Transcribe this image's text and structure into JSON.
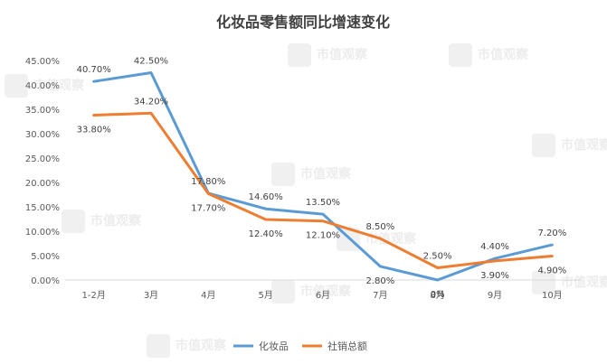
{
  "chart_data": {
    "type": "line",
    "title": "化妆品零售额同比增速变化",
    "categories": [
      "1-2月",
      "3月",
      "4月",
      "5月",
      "6月",
      "7月",
      "8月",
      "9月",
      "10月"
    ],
    "y_ticks": [
      "0.00%",
      "5.00%",
      "10.00%",
      "15.00%",
      "20.00%",
      "25.00%",
      "30.00%",
      "35.00%",
      "40.00%",
      "45.00%"
    ],
    "ylim": [
      0,
      45
    ],
    "grid": false,
    "legend_position": "bottom",
    "series": [
      {
        "name": "化妆品",
        "color": "#5b9bd5",
        "values": [
          40.7,
          42.5,
          17.8,
          14.6,
          13.5,
          2.8,
          0,
          4.4,
          7.2
        ],
        "labels": [
          "40.70%",
          "42.50%",
          "17.80%",
          "14.60%",
          "13.50%",
          "2.80%",
          "0%",
          "4.40%",
          "7.20%"
        ]
      },
      {
        "name": "社销总额",
        "color": "#ed7d31",
        "values": [
          33.8,
          34.2,
          17.7,
          12.4,
          12.1,
          8.5,
          2.5,
          3.9,
          4.9
        ],
        "labels": [
          "33.80%",
          "34.20%",
          "17.70%",
          "12.40%",
          "12.10%",
          "8.50%",
          "2.50%",
          "3.90%",
          "4.90%"
        ]
      }
    ]
  },
  "watermark": {
    "text": "市值观察"
  }
}
